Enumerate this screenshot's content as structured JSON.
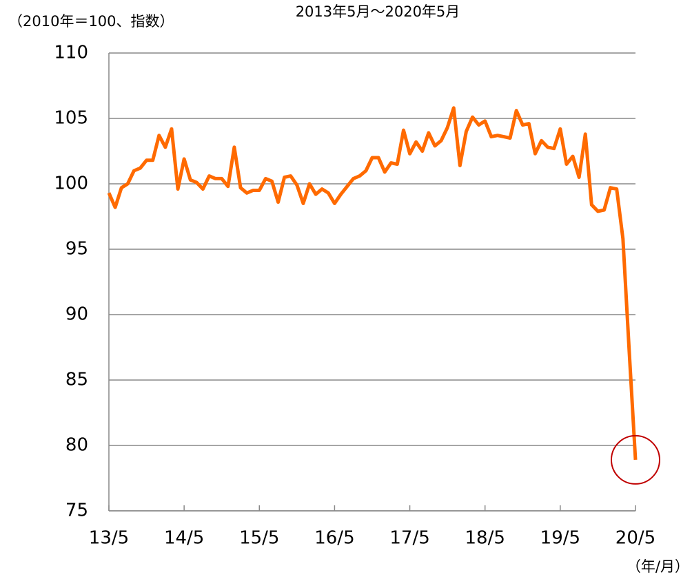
{
  "chart_data": {
    "type": "line",
    "subtitle": "2013年5月～2020年5月",
    "y_label": "（2010年＝100、指数）",
    "x_label": "（年/月）",
    "categories": [
      "13/5",
      null,
      null,
      null,
      null,
      null,
      null,
      null,
      null,
      null,
      null,
      null,
      "14/5",
      null,
      null,
      null,
      null,
      null,
      null,
      null,
      null,
      null,
      null,
      null,
      "15/5",
      null,
      null,
      null,
      null,
      null,
      null,
      null,
      null,
      null,
      null,
      null,
      "16/5",
      null,
      null,
      null,
      null,
      null,
      null,
      null,
      null,
      null,
      null,
      null,
      "17/5",
      null,
      null,
      null,
      null,
      null,
      null,
      null,
      null,
      null,
      null,
      null,
      "18/5",
      null,
      null,
      null,
      null,
      null,
      null,
      null,
      null,
      null,
      null,
      null,
      "19/5",
      null,
      null,
      null,
      null,
      null,
      null,
      null,
      null,
      null,
      null,
      null,
      "20/5"
    ],
    "series": [
      {
        "color": "#ff6a00",
        "values": [
          99.3,
          98.2,
          99.7,
          100.0,
          101.0,
          101.2,
          101.8,
          101.8,
          103.7,
          102.8,
          104.2,
          99.6,
          101.9,
          100.3,
          100.1,
          99.6,
          100.6,
          100.4,
          100.4,
          99.8,
          102.8,
          99.7,
          99.3,
          99.5,
          99.5,
          100.4,
          100.2,
          98.6,
          100.5,
          100.6,
          99.9,
          98.5,
          100.0,
          99.2,
          99.6,
          99.3,
          98.5,
          99.2,
          99.8,
          100.4,
          100.6,
          101.0,
          102.0,
          102.0,
          100.9,
          101.6,
          101.5,
          104.1,
          102.3,
          103.2,
          102.5,
          103.9,
          102.9,
          103.3,
          104.3,
          105.8,
          101.4,
          104.0,
          105.1,
          104.5,
          104.8,
          103.6,
          103.7,
          103.6,
          103.5,
          105.6,
          104.5,
          104.6,
          102.3,
          103.3,
          102.8,
          102.7,
          104.2,
          101.5,
          102.1,
          100.5,
          103.8,
          98.4,
          97.9,
          98.0,
          99.7,
          99.6,
          95.8,
          87.2,
          78.9
        ]
      }
    ],
    "ylim": [
      75,
      110
    ],
    "yticks": [
      75,
      80,
      85,
      90,
      95,
      100,
      105,
      110
    ],
    "grid": true,
    "highlight_color": "#c00000"
  }
}
